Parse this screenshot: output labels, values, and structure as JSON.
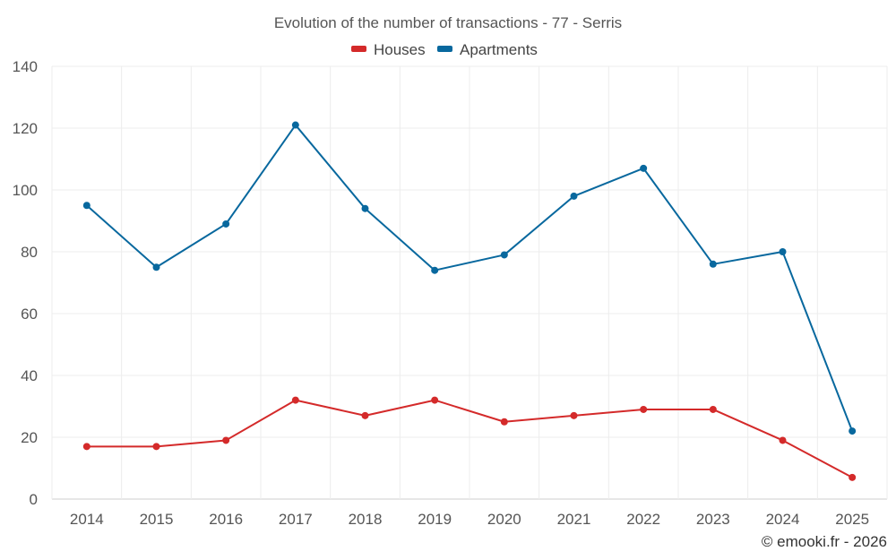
{
  "chart_data": {
    "type": "line",
    "title": "Evolution of the number of transactions - 77 - Serris",
    "categories": [
      "2014",
      "2015",
      "2016",
      "2017",
      "2018",
      "2019",
      "2020",
      "2021",
      "2022",
      "2023",
      "2024",
      "2025"
    ],
    "series": [
      {
        "name": "Houses",
        "color": "#d42a2a",
        "values": [
          17,
          17,
          19,
          32,
          27,
          32,
          25,
          27,
          29,
          29,
          19,
          7
        ]
      },
      {
        "name": "Apartments",
        "color": "#08689e",
        "values": [
          95,
          75,
          89,
          121,
          94,
          74,
          79,
          98,
          107,
          76,
          80,
          22
        ]
      }
    ],
    "ylim": [
      0,
      140
    ],
    "yticks": [
      0,
      20,
      40,
      60,
      80,
      100,
      120,
      140
    ],
    "xlabel": "",
    "ylabel": "",
    "grid": true,
    "legend": "top-center",
    "credit": "© emooki.fr - 2026"
  }
}
